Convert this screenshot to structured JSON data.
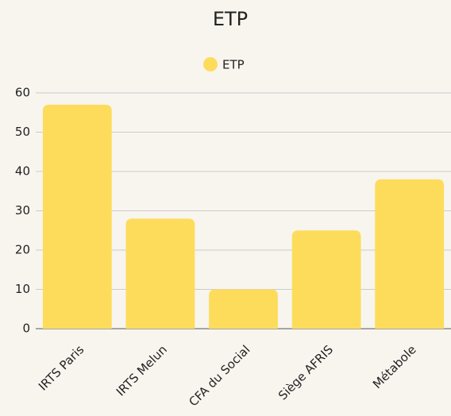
{
  "chart_data": {
    "type": "bar",
    "title": "ETP",
    "categories": [
      "IRTS Paris",
      "IRTS Melun",
      "CFA du Social",
      "Siège AFRIS",
      "Métabole"
    ],
    "series": [
      {
        "name": "ETP",
        "color": "#fddc5c",
        "values": [
          57,
          28,
          10,
          25,
          38
        ]
      }
    ],
    "ylim": [
      0,
      60
    ],
    "yticks": [
      0,
      10,
      20,
      30,
      40,
      50,
      60
    ],
    "grid": true,
    "legend": "top"
  }
}
